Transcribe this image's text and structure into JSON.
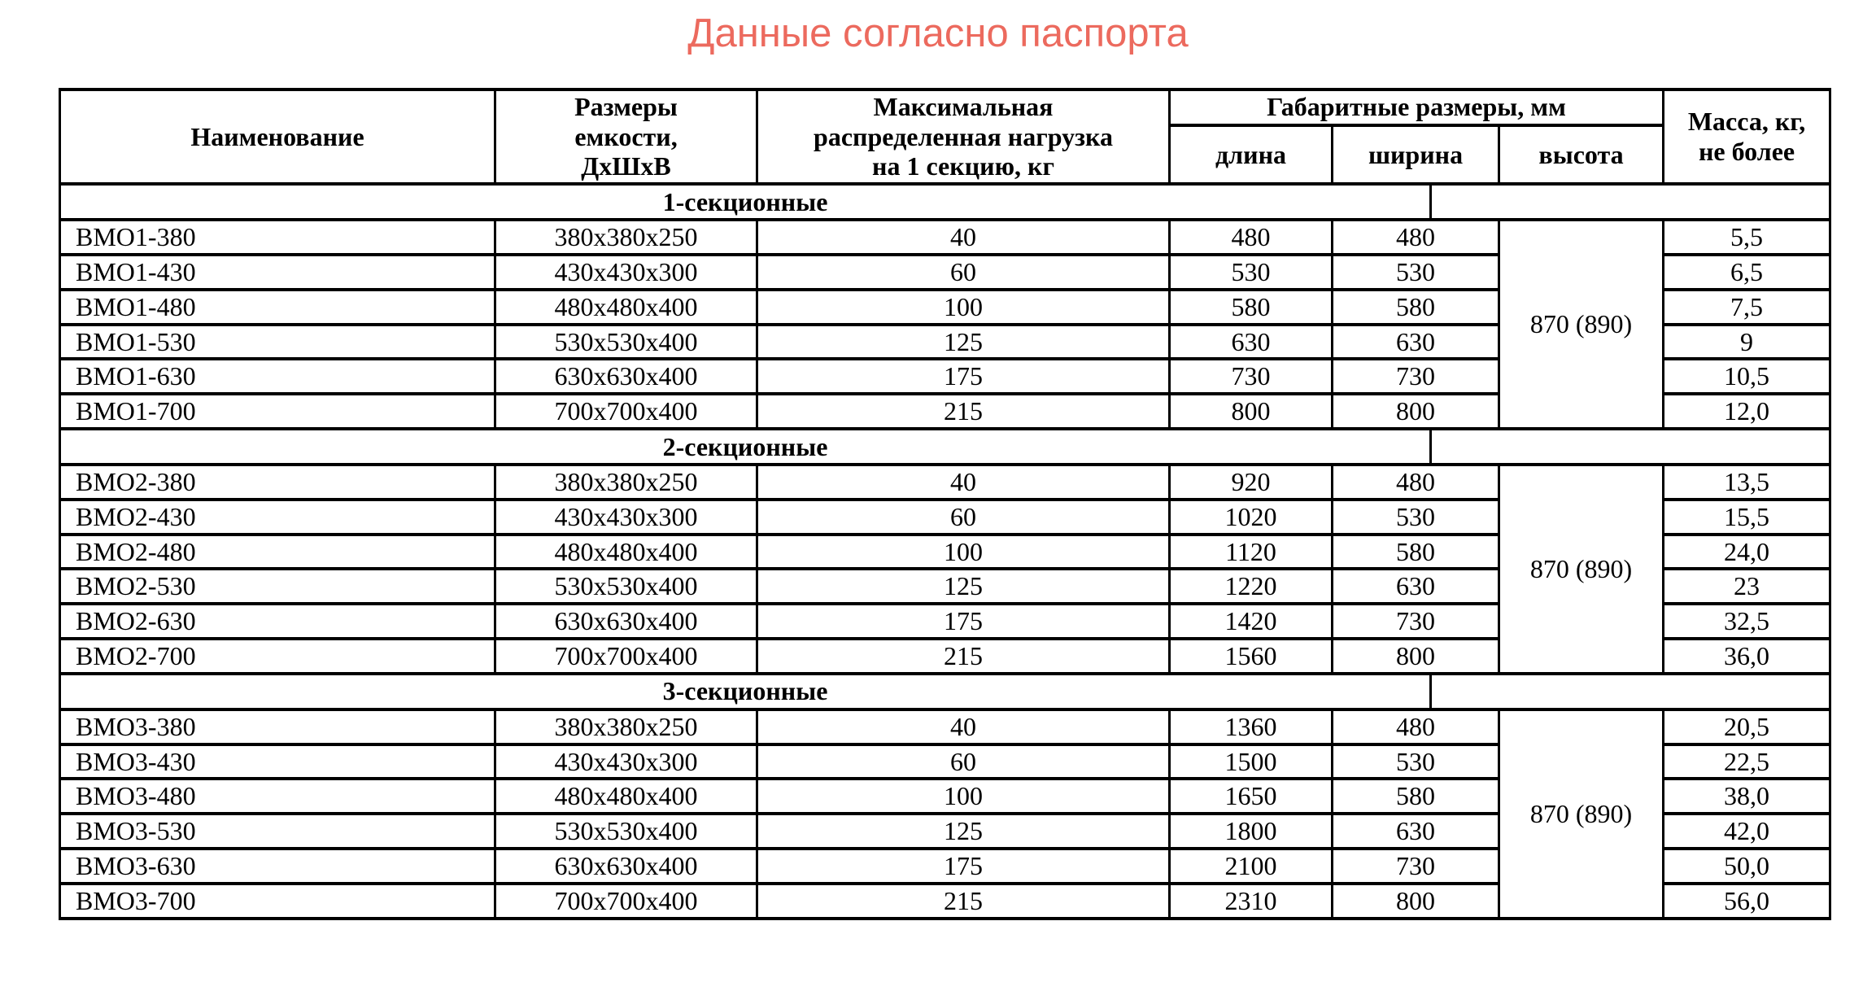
{
  "page": {
    "title": "Данные согласно паспорта",
    "title_color": "#ec6a5e"
  },
  "table": {
    "headers": {
      "name": "Наименование",
      "container_dimensions": "Размеры\nемкости,\nДхШхВ",
      "max_load": "Максимальная\nраспределенная нагрузка\nна 1 секцию, кг",
      "overall_dimensions": "Габаритные размеры, мм",
      "length": "длина",
      "width": "ширина",
      "height": "высота",
      "mass": "Масса, кг,\nне более"
    },
    "sections": [
      {
        "label": "1-секционные",
        "height_value": "870 (890)",
        "rows": [
          {
            "name": "ВМО1-380",
            "size": "380х380х250",
            "load": "40",
            "length": "480",
            "width": "480",
            "mass": "5,5"
          },
          {
            "name": "ВМО1-430",
            "size": "430х430х300",
            "load": "60",
            "length": "530",
            "width": "530",
            "mass": "6,5"
          },
          {
            "name": "ВМО1-480",
            "size": "480х480х400",
            "load": "100",
            "length": "580",
            "width": "580",
            "mass": "7,5"
          },
          {
            "name": "ВМО1-530",
            "size": "530х530х400",
            "load": "125",
            "length": "630",
            "width": "630",
            "mass": "9"
          },
          {
            "name": "ВМО1-630",
            "size": "630х630х400",
            "load": "175",
            "length": "730",
            "width": "730",
            "mass": "10,5"
          },
          {
            "name": "ВМО1-700",
            "size": "700х700х400",
            "load": "215",
            "length": "800",
            "width": "800",
            "mass": "12,0"
          }
        ]
      },
      {
        "label": "2-секционные",
        "height_value": "870 (890)",
        "rows": [
          {
            "name": "ВМО2-380",
            "size": "380х380х250",
            "load": "40",
            "length": "920",
            "width": "480",
            "mass": "13,5"
          },
          {
            "name": "ВМО2-430",
            "size": "430х430х300",
            "load": "60",
            "length": "1020",
            "width": "530",
            "mass": "15,5"
          },
          {
            "name": "ВМО2-480",
            "size": "480х480х400",
            "load": "100",
            "length": "1120",
            "width": "580",
            "mass": "24,0"
          },
          {
            "name": "ВМО2-530",
            "size": "530х530х400",
            "load": "125",
            "length": "1220",
            "width": "630",
            "mass": "23"
          },
          {
            "name": "ВМО2-630",
            "size": "630х630х400",
            "load": "175",
            "length": "1420",
            "width": "730",
            "mass": "32,5"
          },
          {
            "name": "ВМО2-700",
            "size": "700х700х400",
            "load": "215",
            "length": "1560",
            "width": "800",
            "mass": "36,0"
          }
        ]
      },
      {
        "label": "3-секционные",
        "height_value": "870 (890)",
        "rows": [
          {
            "name": "ВМО3-380",
            "size": "380х380х250",
            "load": "40",
            "length": "1360",
            "width": "480",
            "mass": "20,5"
          },
          {
            "name": "ВМО3-430",
            "size": "430х430х300",
            "load": "60",
            "length": "1500",
            "width": "530",
            "mass": "22,5"
          },
          {
            "name": "ВМО3-480",
            "size": "480х480х400",
            "load": "100",
            "length": "1650",
            "width": "580",
            "mass": "38,0"
          },
          {
            "name": "ВМО3-530",
            "size": "530х530х400",
            "load": "125",
            "length": "1800",
            "width": "630",
            "mass": "42,0"
          },
          {
            "name": "ВМО3-630",
            "size": "630х630х400",
            "load": "175",
            "length": "2100",
            "width": "730",
            "mass": "50,0"
          },
          {
            "name": "ВМО3-700",
            "size": "700х700х400",
            "load": "215",
            "length": "2310",
            "width": "800",
            "mass": "56,0"
          }
        ]
      }
    ]
  }
}
